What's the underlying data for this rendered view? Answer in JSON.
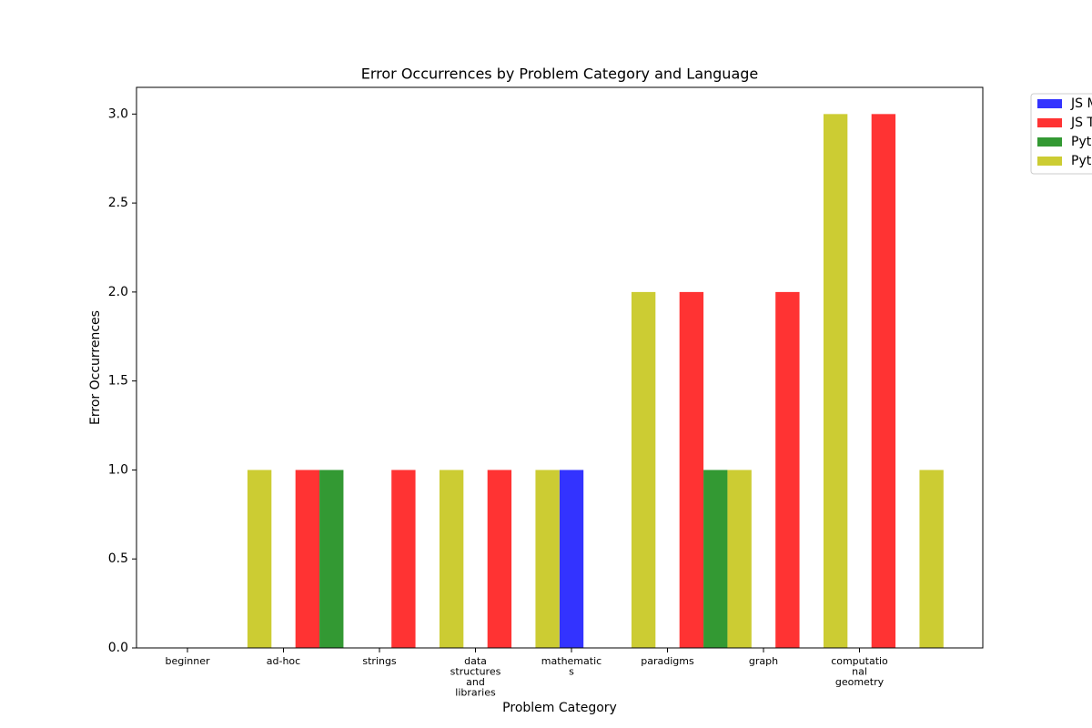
{
  "chart_data": {
    "type": "bar",
    "title": "Error Occurrences by Problem Category and Language",
    "x_label": "Problem Category",
    "y_label": "Error Occurrences",
    "categories": [
      "beginner",
      "ad-hoc",
      "strings",
      "data\nstructures\nand\nlibraries",
      "mathematic\ns",
      "paradigms",
      "graph",
      "computatio\nnal\ngeometry"
    ],
    "series": [
      {
        "name": "JS M",
        "color": "#3333ff",
        "values": [
          0,
          0,
          0,
          0,
          1,
          0,
          0,
          0
        ]
      },
      {
        "name": "JS T",
        "color": "#ff3333",
        "values": [
          0,
          1,
          1,
          1,
          0,
          2,
          2,
          3
        ]
      },
      {
        "name": "Pyt",
        "color": "#339933",
        "values": [
          0,
          1,
          0,
          0,
          0,
          1,
          0,
          0
        ]
      },
      {
        "name": "Pyt",
        "color": "#cccc33",
        "values": [
          1,
          0,
          1,
          1,
          2,
          1,
          3,
          1
        ]
      }
    ],
    "ylim": [
      0,
      3.15
    ],
    "yticks": [
      {
        "value": 0,
        "label": "0.0"
      },
      {
        "value": 0.5,
        "label": "0.5"
      },
      {
        "value": 1,
        "label": "1.0"
      },
      {
        "value": 1.5,
        "label": "1.5"
      },
      {
        "value": 2,
        "label": "2.0"
      },
      {
        "value": 2.5,
        "label": "2.5"
      },
      {
        "value": 3,
        "label": "3.0"
      }
    ],
    "legend": "outside-upper-right"
  }
}
